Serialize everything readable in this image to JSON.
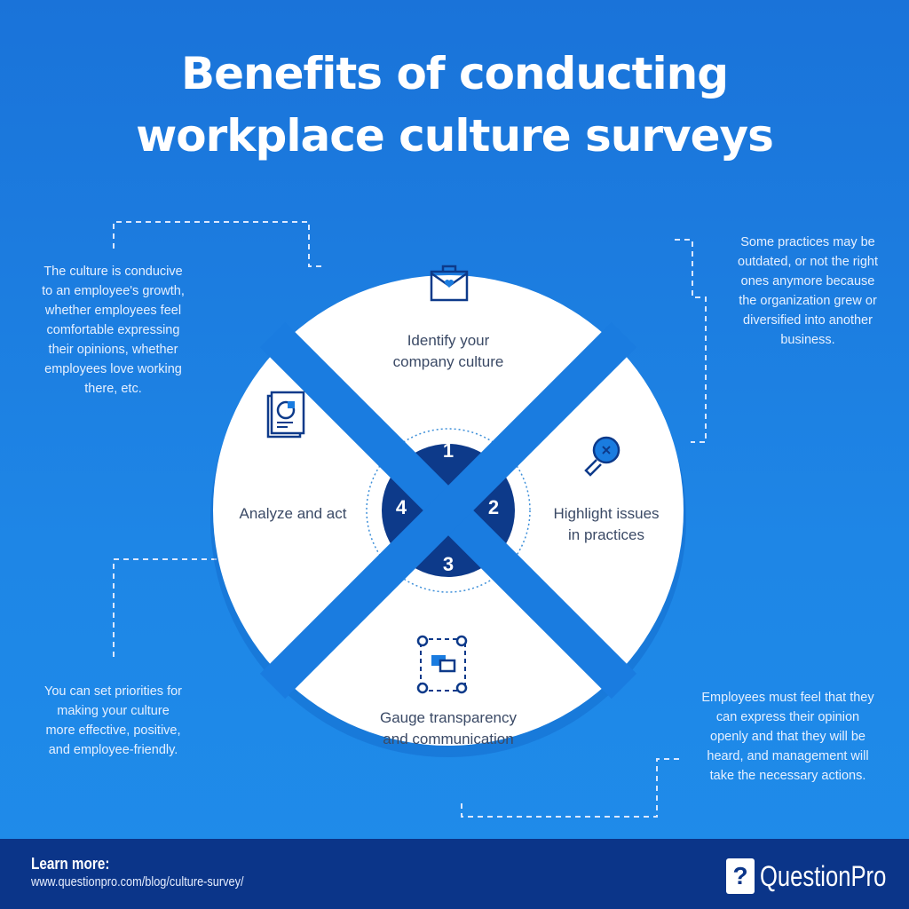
{
  "title": {
    "line1": "Benefits of conducting",
    "line2": "workplace culture surveys"
  },
  "segments": [
    {
      "number": "1",
      "label_line1": "Identify your",
      "label_line2": "company culture",
      "icon": "briefcase-heart-icon"
    },
    {
      "number": "2",
      "label_line1": "Highlight issues",
      "label_line2": "in practices",
      "icon": "magnifier-icon"
    },
    {
      "number": "3",
      "label_line1": "Gauge transparency",
      "label_line2": "and communication",
      "icon": "people-chat-icon"
    },
    {
      "number": "4",
      "label_line1": "Analyze and act",
      "label_line2": "",
      "icon": "report-chart-icon"
    }
  ],
  "notes": {
    "top_left": [
      "The culture is conducive",
      "to an employee's growth,",
      "whether employees feel",
      "comfortable expressing",
      "their opinions, whether",
      "employees love working",
      "there, etc."
    ],
    "top_right": [
      "Some practices may be",
      "outdated, or not the right",
      "ones anymore because",
      "the organization grew or",
      "diversified into another",
      "business."
    ],
    "bottom_left": [
      "You can set priorities for",
      "making your culture",
      "more effective, positive,",
      "and employee-friendly."
    ],
    "bottom_right": [
      "Employees must feel that they",
      "can express their opinion",
      "openly and that they will be",
      "heard, and management will",
      "take the necessary actions."
    ]
  },
  "footer": {
    "learn_more": "Learn more:",
    "url": "www.questionpro.com/blog/culture-survey/",
    "brand": "QuestionPro",
    "logo_glyph": "?"
  },
  "colors": {
    "background": "#1e86e6",
    "navy": "#0d3a8a",
    "footer": "#0b3589",
    "text": "#3b4a66"
  }
}
